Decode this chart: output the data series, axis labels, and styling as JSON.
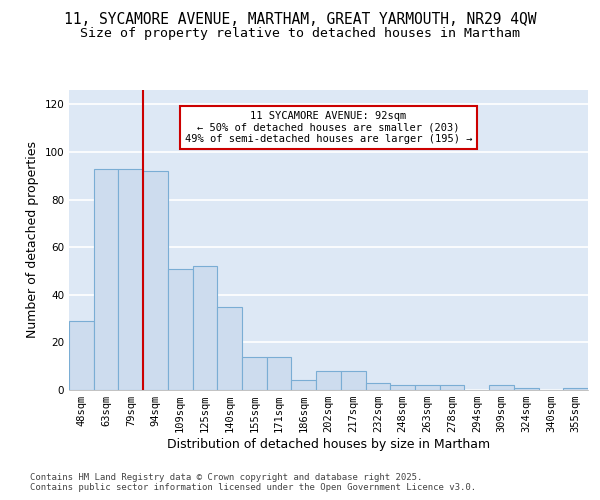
{
  "title1": "11, SYCAMORE AVENUE, MARTHAM, GREAT YARMOUTH, NR29 4QW",
  "title2": "Size of property relative to detached houses in Martham",
  "xlabel": "Distribution of detached houses by size in Martham",
  "ylabel": "Number of detached properties",
  "categories": [
    "48sqm",
    "63sqm",
    "79sqm",
    "94sqm",
    "109sqm",
    "125sqm",
    "140sqm",
    "155sqm",
    "171sqm",
    "186sqm",
    "202sqm",
    "217sqm",
    "232sqm",
    "248sqm",
    "263sqm",
    "278sqm",
    "294sqm",
    "309sqm",
    "324sqm",
    "340sqm",
    "355sqm"
  ],
  "values": [
    29,
    93,
    93,
    92,
    51,
    52,
    35,
    14,
    14,
    4,
    8,
    8,
    3,
    2,
    2,
    2,
    0,
    2,
    1,
    0,
    1
  ],
  "bar_color": "#cddcee",
  "bar_edge_color": "#7aadd4",
  "background_color": "#dde8f5",
  "grid_color": "#ffffff",
  "annotation_text": "11 SYCAMORE AVENUE: 92sqm\n← 50% of detached houses are smaller (203)\n49% of semi-detached houses are larger (195) →",
  "vline_color": "#cc0000",
  "annotation_box_color": "#ffffff",
  "annotation_box_edge": "#cc0000",
  "ylim": [
    0,
    126
  ],
  "yticks": [
    0,
    20,
    40,
    60,
    80,
    100,
    120
  ],
  "footer": "Contains HM Land Registry data © Crown copyright and database right 2025.\nContains public sector information licensed under the Open Government Licence v3.0.",
  "title_fontsize": 10.5,
  "subtitle_fontsize": 9.5,
  "axis_label_fontsize": 9,
  "tick_fontsize": 7.5,
  "footer_fontsize": 6.5,
  "fig_bg": "#ffffff"
}
